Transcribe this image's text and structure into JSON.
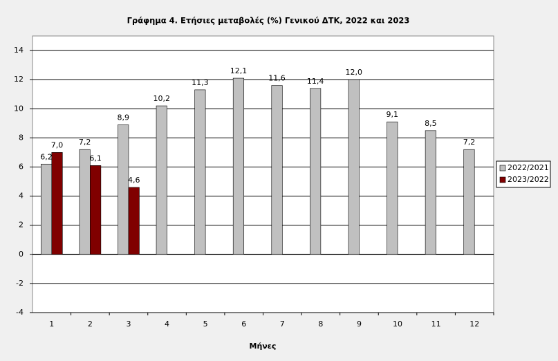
{
  "chart_data": {
    "type": "bar",
    "title": "Γράφημα 4. Ετήσιες μεταβολές (%) Γενικού ΔΤΚ, 2022 και 2023",
    "x_label": "Μήνες",
    "categories": [
      "1",
      "2",
      "3",
      "4",
      "5",
      "6",
      "7",
      "8",
      "9",
      "10",
      "11",
      "12"
    ],
    "series": [
      {
        "name": "2022/2021",
        "color": "#c0c0c0",
        "values": [
          6.2,
          7.2,
          8.9,
          10.2,
          11.3,
          12.1,
          11.6,
          11.4,
          12.0,
          9.1,
          8.5,
          7.2
        ],
        "value_labels": [
          "6,2",
          "7,2",
          "8,9",
          "10,2",
          "11,3",
          "12,1",
          "11,6",
          "11,4",
          "12,0",
          "9,1",
          "8,5",
          "7,2"
        ]
      },
      {
        "name": "2023/2022",
        "color": "#800000",
        "values": [
          7.0,
          6.1,
          4.6,
          null,
          null,
          null,
          null,
          null,
          null,
          null,
          null,
          null
        ],
        "value_labels": [
          "7,0",
          "6,1",
          "4,6",
          null,
          null,
          null,
          null,
          null,
          null,
          null,
          null,
          null
        ]
      }
    ],
    "ylim": [
      -4,
      15
    ],
    "yticks": [
      -4,
      -2,
      0,
      2,
      4,
      6,
      8,
      10,
      12,
      14
    ],
    "grid": true,
    "legend": "right"
  }
}
